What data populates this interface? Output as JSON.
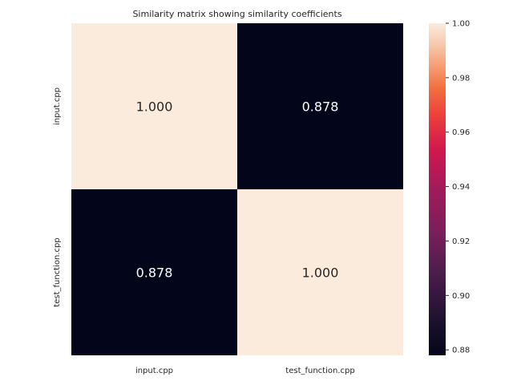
{
  "chart_data": {
    "type": "heatmap",
    "title": "Similarity matrix showing similarity coefficients",
    "x_categories": [
      "input.cpp",
      "test_function.cpp"
    ],
    "y_categories": [
      "input.cpp",
      "test_function.cpp"
    ],
    "values": [
      [
        1.0,
        0.878
      ],
      [
        0.878,
        1.0
      ]
    ],
    "cell_labels": [
      [
        "1.000",
        "0.878"
      ],
      [
        "0.878",
        "1.000"
      ]
    ],
    "vmin": 0.878,
    "vmax": 1.0,
    "colormap": "rocket",
    "colorbar": {
      "ticks": [
        1.0,
        0.98,
        0.96,
        0.94,
        0.92,
        0.9,
        0.88
      ],
      "tick_labels": [
        "1.00",
        "0.98",
        "0.96",
        "0.94",
        "0.92",
        "0.90",
        "0.88"
      ]
    },
    "colors": {
      "high": "#faebdd",
      "low": "#03051a"
    }
  }
}
